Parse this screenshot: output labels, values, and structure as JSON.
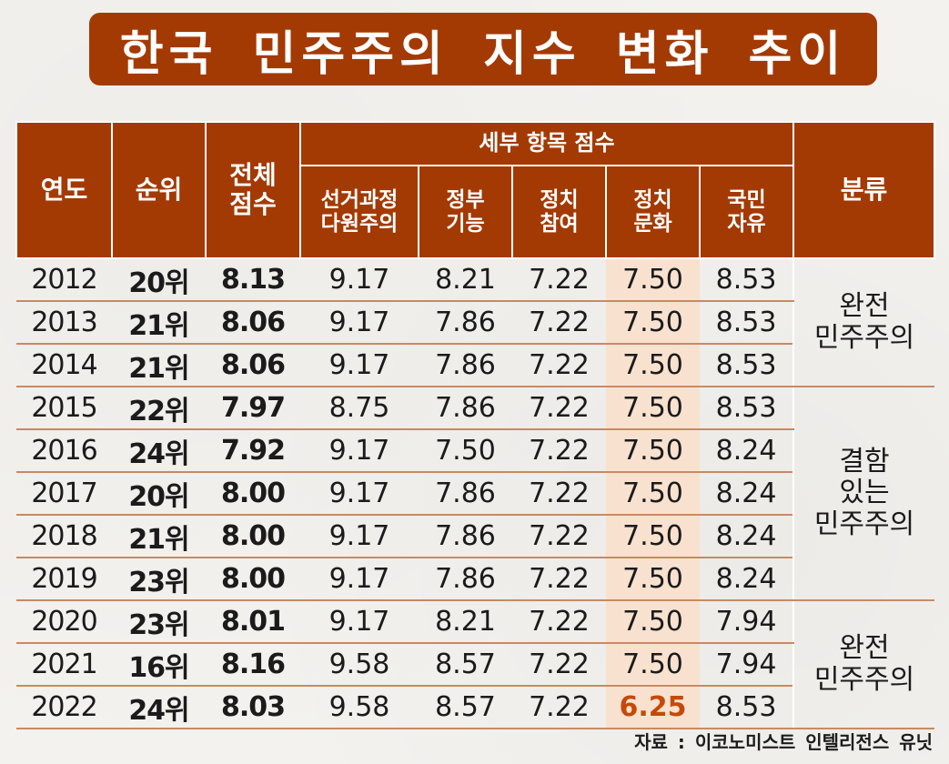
{
  "title": "한국 민주주의 지수 변화 추이",
  "chart_data": {
    "type": "table",
    "title": "한국 민주주의 지수 변화 추이",
    "headers": {
      "year": "연도",
      "rank": "순위",
      "total_line1": "전체",
      "total_line2": "점수",
      "sub_group": "세부 항목 점수",
      "electoral_line1": "선거과정",
      "electoral_line2": "다원주의",
      "government_line1": "정부",
      "government_line2": "기능",
      "participation_line1": "정치",
      "participation_line2": "참여",
      "culture_line1": "정치",
      "culture_line2": "문화",
      "liberties_line1": "국민",
      "liberties_line2": "자유",
      "classification": "분류"
    },
    "rows": [
      {
        "year": "2012",
        "rank": "20위",
        "total": "8.13",
        "electoral": "9.17",
        "government": "8.21",
        "participation": "7.22",
        "culture": "7.50",
        "liberties": "8.53"
      },
      {
        "year": "2013",
        "rank": "21위",
        "total": "8.06",
        "electoral": "9.17",
        "government": "7.86",
        "participation": "7.22",
        "culture": "7.50",
        "liberties": "8.53"
      },
      {
        "year": "2014",
        "rank": "21위",
        "total": "8.06",
        "electoral": "9.17",
        "government": "7.86",
        "participation": "7.22",
        "culture": "7.50",
        "liberties": "8.53"
      },
      {
        "year": "2015",
        "rank": "22위",
        "total": "7.97",
        "electoral": "8.75",
        "government": "7.86",
        "participation": "7.22",
        "culture": "7.50",
        "liberties": "8.53"
      },
      {
        "year": "2016",
        "rank": "24위",
        "total": "7.92",
        "electoral": "9.17",
        "government": "7.50",
        "participation": "7.22",
        "culture": "7.50",
        "liberties": "8.24"
      },
      {
        "year": "2017",
        "rank": "20위",
        "total": "8.00",
        "electoral": "9.17",
        "government": "7.86",
        "participation": "7.22",
        "culture": "7.50",
        "liberties": "8.24"
      },
      {
        "year": "2018",
        "rank": "21위",
        "total": "8.00",
        "electoral": "9.17",
        "government": "7.86",
        "participation": "7.22",
        "culture": "7.50",
        "liberties": "8.24"
      },
      {
        "year": "2019",
        "rank": "23위",
        "total": "8.00",
        "electoral": "9.17",
        "government": "7.86",
        "participation": "7.22",
        "culture": "7.50",
        "liberties": "8.24"
      },
      {
        "year": "2020",
        "rank": "23위",
        "total": "8.01",
        "electoral": "9.17",
        "government": "8.21",
        "participation": "7.22",
        "culture": "7.50",
        "liberties": "7.94"
      },
      {
        "year": "2021",
        "rank": "16위",
        "total": "8.16",
        "electoral": "9.58",
        "government": "8.57",
        "participation": "7.22",
        "culture": "7.50",
        "liberties": "7.94"
      },
      {
        "year": "2022",
        "rank": "24위",
        "total": "8.03",
        "electoral": "9.58",
        "government": "8.57",
        "participation": "7.22",
        "culture": "6.25",
        "liberties": "8.53"
      }
    ],
    "classifications": [
      {
        "lines": [
          "완전",
          "민주주의"
        ],
        "span": 3
      },
      {
        "lines": [
          "결함",
          "있는",
          "민주주의"
        ],
        "span": 5
      },
      {
        "lines": [
          "완전",
          "민주주의"
        ],
        "span": 3
      }
    ],
    "highlight_column": "culture",
    "highlight_value_year": "2022",
    "colors": {
      "header_bg": "#a33a04",
      "highlight_column_bg": "#f8e2cf",
      "highlight_value": "#c44a0a"
    }
  },
  "source": "자료 : 이코노미스트 인텔리전스 유닛"
}
